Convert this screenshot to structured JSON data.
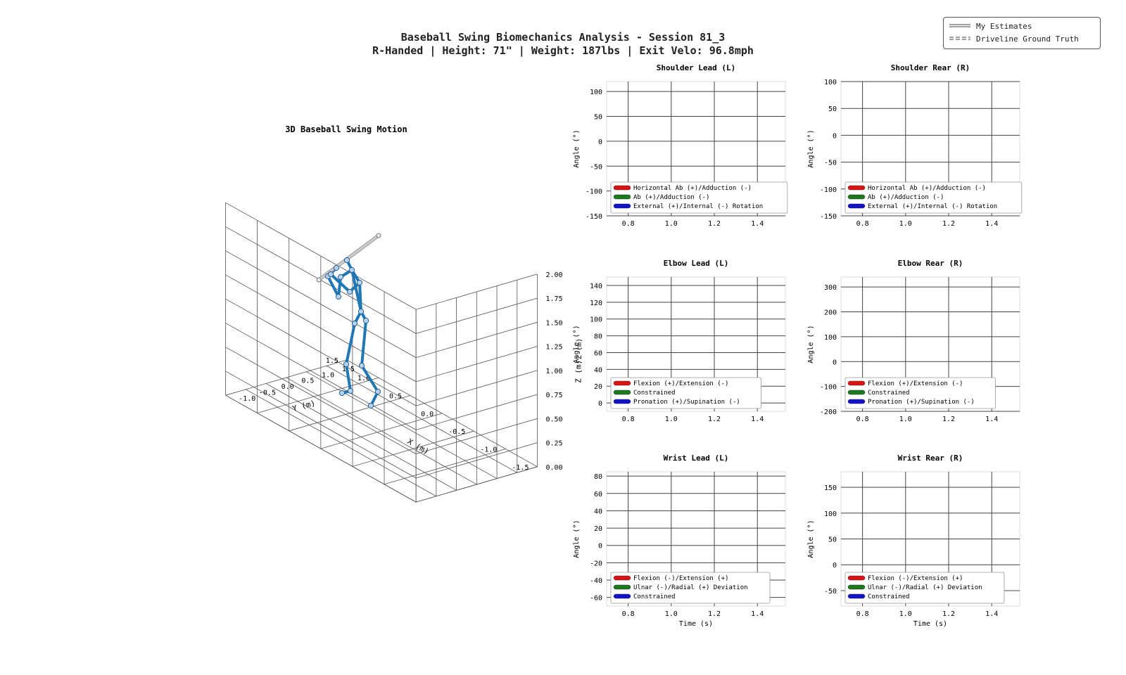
{
  "title": "Baseball Swing Biomechanics Analysis - Session 81_3",
  "subtitle": "R-Handed | Height: 71\" | Weight: 187lbs | Exit Velo: 96.8mph",
  "legend": [
    "My Estimates",
    "Driveline Ground Truth"
  ],
  "chart_data": [
    {
      "type": "scatter",
      "title": "3D Baseball Swing Motion",
      "xlabel": "X (m)",
      "ylabel": "Y (m)",
      "zlabel": "Z (m)",
      "xticks": [
        "-1.5",
        "-1.0",
        "-0.5",
        "0.0",
        "0.5",
        "1.0",
        "1.5"
      ],
      "yticks": [
        "-1.0",
        "-0.5",
        "0.0",
        "0.5",
        "1.0",
        "1.5"
      ],
      "zticks": [
        "0.00",
        "0.25",
        "0.50",
        "0.75",
        "1.00",
        "1.25",
        "1.50",
        "1.75",
        "2.00"
      ],
      "xlim": [
        -1.5,
        1.5
      ],
      "ylim": [
        -1.5,
        1.5
      ],
      "zlim": [
        0,
        2
      ],
      "joint_color": "#1f77b4",
      "bat_color": "#cccccc"
    },
    {
      "type": "line",
      "title": "Shoulder Lead (L)",
      "xlabel": "",
      "ylabel": "Angle (°)",
      "xticks": [
        "0.8",
        "1.0",
        "1.2",
        "1.4"
      ],
      "yticks": [
        "100",
        "50",
        "0",
        "-50",
        "-100",
        "-150"
      ],
      "ylim": [
        -150,
        120
      ],
      "legend": [
        "Horizontal Ab (+)/Adduction (-)",
        "Ab (+)/Adduction (-)",
        "External (+)/Internal (-) Rotation"
      ],
      "series": []
    },
    {
      "type": "line",
      "title": "Shoulder Rear (R)",
      "xlabel": "",
      "ylabel": "Angle (°)",
      "xticks": [
        "0.8",
        "1.0",
        "1.2",
        "1.4"
      ],
      "yticks": [
        "100",
        "50",
        "0",
        "-50",
        "-100",
        "-150"
      ],
      "ylim": [
        -150,
        100
      ],
      "legend": [
        "Horizontal Ab (+)/Adduction (-)",
        "Ab (+)/Adduction (-)",
        "External (+)/Internal (-) Rotation"
      ],
      "series": []
    },
    {
      "type": "line",
      "title": "Elbow Lead (L)",
      "xlabel": "",
      "ylabel": "Angle (°)",
      "xticks": [
        "0.8",
        "1.0",
        "1.2",
        "1.4"
      ],
      "yticks": [
        "140",
        "120",
        "100",
        "80",
        "60",
        "40",
        "20",
        "0"
      ],
      "ylim": [
        -10,
        150
      ],
      "legend": [
        "Flexion (+)/Extension (-)",
        "Constrained",
        "Pronation (+)/Supination (-)"
      ],
      "series": []
    },
    {
      "type": "line",
      "title": "Elbow Rear (R)",
      "xlabel": "",
      "ylabel": "Angle (°)",
      "xticks": [
        "0.8",
        "1.0",
        "1.2",
        "1.4"
      ],
      "yticks": [
        "300",
        "200",
        "100",
        "0",
        "-100",
        "-200"
      ],
      "ylim": [
        -200,
        340
      ],
      "legend": [
        "Flexion (+)/Extension (-)",
        "Constrained",
        "Pronation (+)/Supination (-)"
      ],
      "series": []
    },
    {
      "type": "line",
      "title": "Wrist Lead (L)",
      "xlabel": "Time (s)",
      "ylabel": "Angle (°)",
      "xticks": [
        "0.8",
        "1.0",
        "1.2",
        "1.4"
      ],
      "yticks": [
        "80",
        "60",
        "40",
        "20",
        "0",
        "-20",
        "-40",
        "-60"
      ],
      "ylim": [
        -70,
        85
      ],
      "legend": [
        "Flexion (-)/Extension (+)",
        "Ulnar (-)/Radial (+) Deviation",
        "Constrained"
      ],
      "series": []
    },
    {
      "type": "line",
      "title": "Wrist Rear (R)",
      "xlabel": "Time (s)",
      "ylabel": "Angle (°)",
      "xticks": [
        "0.8",
        "1.0",
        "1.2",
        "1.4"
      ],
      "yticks": [
        "150",
        "100",
        "50",
        "0",
        "-50"
      ],
      "ylim": [
        -80,
        180
      ],
      "legend": [
        "Flexion (-)/Extension (+)",
        "Ulnar (-)/Radial (+) Deviation",
        "Constrained"
      ],
      "series": []
    }
  ],
  "colors": {
    "red": "#dd1111",
    "green": "#1c7a1c",
    "blue": "#1111cc",
    "grid": "#444444",
    "frame": "#dddddd"
  }
}
